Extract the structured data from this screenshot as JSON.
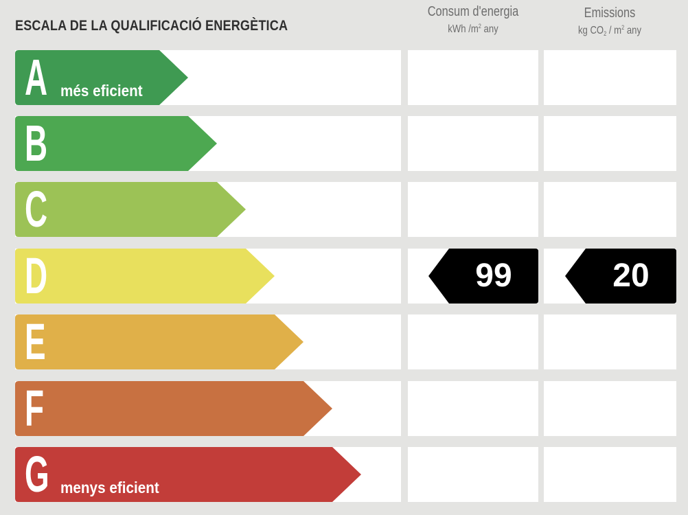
{
  "title": "ESCALA DE LA QUALIFICACIÓ ENERGÈTICA",
  "columns": {
    "energy": {
      "title": "Consum d'energia",
      "unit_prefix": "kWh /m",
      "unit_sup": "2",
      "unit_suffix": " any"
    },
    "emissions": {
      "title": "Emissions",
      "unit_prefix": "kg CO",
      "unit_sub": "2",
      "unit_mid": " / m",
      "unit_sup": "2",
      "unit_suffix": " any"
    }
  },
  "rating_scale": [
    {
      "letter": "A",
      "label": "més eficient",
      "color": "#3f9a52"
    },
    {
      "letter": "B",
      "label": "",
      "color": "#4da851"
    },
    {
      "letter": "C",
      "label": "",
      "color": "#9cc256"
    },
    {
      "letter": "D",
      "label": "",
      "color": "#e8e05d"
    },
    {
      "letter": "E",
      "label": "",
      "color": "#e0b049"
    },
    {
      "letter": "F",
      "label": "",
      "color": "#c87141"
    },
    {
      "letter": "G",
      "label": "menys eficient",
      "color": "#c23d39"
    }
  ],
  "current_rating": {
    "letter": "D",
    "energy_value": "99",
    "emissions_value": "20",
    "badge_color": "#000000"
  }
}
